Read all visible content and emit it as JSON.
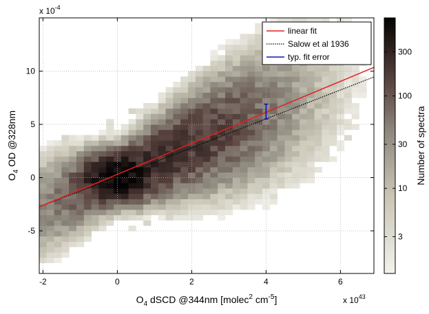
{
  "chart_data": {
    "type": "heatmap",
    "xlabel": {
      "pre": "O",
      "sub": "4",
      "post": " dSCD @344nm [molec",
      "sup": "2",
      "post2": " cm",
      "sup2": "-5",
      "end": "]"
    },
    "ylabel": {
      "pre": "O",
      "sub": "4",
      "post": " OD @328nm"
    },
    "x_multiplier": {
      "base": "x 10",
      "exp": "43"
    },
    "y_multiplier": {
      "base": "x 10",
      "exp": "-4"
    },
    "xlim": [
      -2.1,
      6.9
    ],
    "ylim": [
      -9,
      15
    ],
    "xticks": [
      -2,
      0,
      2,
      4,
      6
    ],
    "xtick_labels": [
      "-2",
      "0",
      "2",
      "4",
      "6"
    ],
    "yticks": [
      -5,
      0,
      5,
      10
    ],
    "ytick_labels": [
      "-5",
      "0",
      "5",
      "10"
    ],
    "grid": true,
    "legend_position": "top-right",
    "legend": [
      {
        "label": "linear fit",
        "color": "#e02020",
        "style": "solid"
      },
      {
        "label": "Salow et al 1936",
        "color": "#000000",
        "style": "dotted"
      },
      {
        "label": "typ. fit error",
        "color": "#1010c0",
        "style": "solid"
      }
    ],
    "series": [
      {
        "name": "linear fit",
        "x": [
          -2.1,
          6.9
        ],
        "y": [
          -2.75,
          10.35
        ]
      },
      {
        "name": "Salow et al 1936",
        "x": [
          -2.1,
          6.9
        ],
        "y": [
          -2.75,
          9.45
        ]
      }
    ],
    "error_bar": {
      "x": 4.0,
      "y": 6.2,
      "ylow": 5.5,
      "yhigh": 6.9
    },
    "colorbar": {
      "label": "Number of spectra",
      "scale": "log",
      "range": [
        1.2,
        700
      ],
      "ticks": [
        3,
        10,
        30,
        100,
        300
      ],
      "tick_labels": [
        "3",
        "10",
        "30",
        "100",
        "300"
      ]
    },
    "heatmap_model": {
      "bin_x": 0.2,
      "bin_y": 0.5,
      "ridge_slope": 1.46,
      "ridge_intercept": 0.2,
      "peak_count": 600,
      "peak_x": 0.0,
      "peak_y": 0.0
    }
  },
  "colors": {
    "background": "#ffffff",
    "axes": "#000000",
    "grid": "#b0b0b0",
    "colormap_low": "#f2f1ea",
    "colormap_mid": "#8a847a",
    "colormap_high": "#0a0605"
  }
}
